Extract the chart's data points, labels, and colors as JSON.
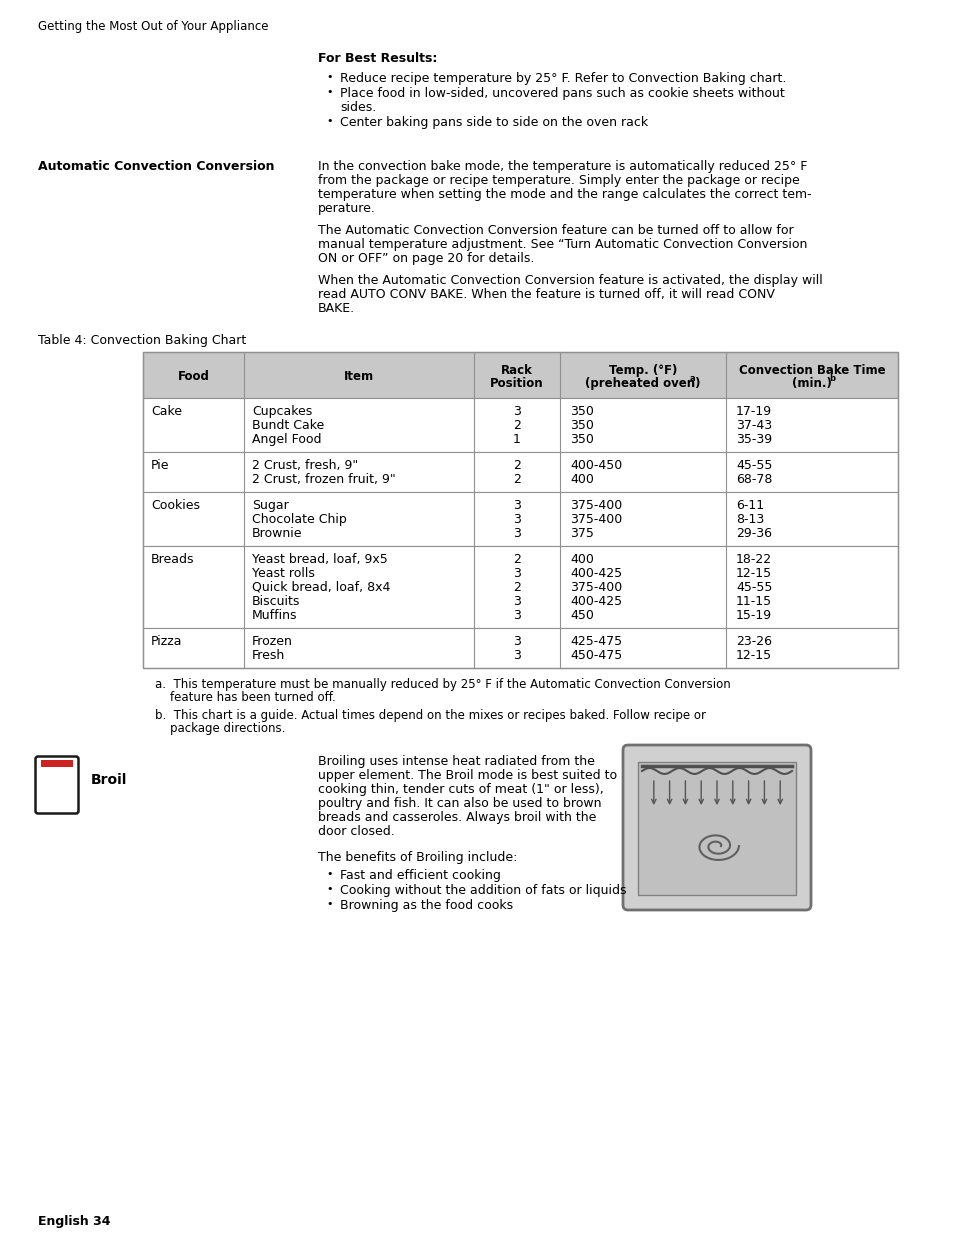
{
  "page_title": "Getting the Most Out of Your Appliance",
  "section1_title": "For Best Results:",
  "section1_bullets": [
    "Reduce recipe temperature by 25° F. Refer to Convection Baking chart.",
    "Place food in low-sided, uncovered pans such as cookie sheets without sides.",
    "Center baking pans side to side on the oven rack"
  ],
  "section2_label": "Automatic Convection Conversion",
  "section2_para1_lines": [
    "In the convection bake mode, the temperature is automatically reduced 25° F",
    "from the package or recipe temperature. Simply enter the package or recipe",
    "temperature when setting the mode and the range calculates the correct tem-",
    "perature."
  ],
  "section2_para2_lines": [
    "The Automatic Convection Conversion feature can be turned off to allow for",
    "manual temperature adjustment. See “Turn Automatic Convection Conversion",
    "ON or OFF” on page 20 for details."
  ],
  "section2_para3_lines": [
    "When the Automatic Convection Conversion feature is activated, the display will",
    "read AUTO CONV BAKE. When the feature is turned off, it will read CONV",
    "BAKE."
  ],
  "table_title": "Table 4: Convection Baking Chart",
  "table_col_headers": [
    [
      "Food"
    ],
    [
      "Item"
    ],
    [
      "Rack",
      "Position"
    ],
    [
      "Temp. (°F)",
      "(preheated oven)"
    ],
    [
      "Convection Bake Time",
      "(min.)"
    ]
  ],
  "table_col_header_sup": [
    "",
    "",
    "",
    "a",
    "b"
  ],
  "table_rows": [
    {
      "food": "Cake",
      "items": [
        "Cupcakes",
        "Bundt Cake",
        "Angel Food"
      ],
      "rack": [
        "3",
        "2",
        "1"
      ],
      "temp": [
        "350",
        "350",
        "350"
      ],
      "time": [
        "17-19",
        "37-43",
        "35-39"
      ]
    },
    {
      "food": "Pie",
      "items": [
        "2 Crust, fresh, 9\"",
        "2 Crust, frozen fruit, 9\""
      ],
      "rack": [
        "2",
        "2"
      ],
      "temp": [
        "400-450",
        "400"
      ],
      "time": [
        "45-55",
        "68-78"
      ]
    },
    {
      "food": "Cookies",
      "items": [
        "Sugar",
        "Chocolate Chip",
        "Brownie"
      ],
      "rack": [
        "3",
        "3",
        "3"
      ],
      "temp": [
        "375-400",
        "375-400",
        "375"
      ],
      "time": [
        "6-11",
        "8-13",
        "29-36"
      ]
    },
    {
      "food": "Breads",
      "items": [
        "Yeast bread, loaf, 9x5",
        "Yeast rolls",
        "Quick bread, loaf, 8x4",
        "Biscuits",
        "Muffins"
      ],
      "rack": [
        "2",
        "3",
        "2",
        "3",
        "3"
      ],
      "temp": [
        "400",
        "400-425",
        "375-400",
        "400-425",
        "450"
      ],
      "time": [
        "18-22",
        "12-15",
        "45-55",
        "11-15",
        "15-19"
      ]
    },
    {
      "food": "Pizza",
      "items": [
        "Frozen",
        "Fresh"
      ],
      "rack": [
        "3",
        "3"
      ],
      "temp": [
        "425-475",
        "450-475"
      ],
      "time": [
        "23-26",
        "12-15"
      ]
    }
  ],
  "footnote_a_lines": [
    "a.  This temperature must be manually reduced by 25° F if the Automatic Convection Conversion",
    "    feature has been turned off."
  ],
  "footnote_b_lines": [
    "b.  This chart is a guide. Actual times depend on the mixes or recipes baked. Follow recipe or",
    "    package directions."
  ],
  "broil_label": "Broil",
  "broil_para1_lines": [
    "Broiling uses intense heat radiated from the",
    "upper element. The Broil mode is best suited to",
    "cooking thin, tender cuts of meat (1\" or less),",
    "poultry and fish. It can also be used to brown",
    "breads and casseroles. Always broil with the",
    "door closed."
  ],
  "broil_para2": "The benefits of Broiling include:",
  "broil_bullets": [
    "Fast and efficient cooking",
    "Cooking without the addition of fats or liquids",
    "Browning as the food cooks"
  ],
  "footer": "English 34",
  "bg_color": "#ffffff",
  "header_bg": "#c8c8c8",
  "table_border_color": "#909090",
  "icon_border_color": "#1a1a1a",
  "icon_red_color": "#cc2222"
}
